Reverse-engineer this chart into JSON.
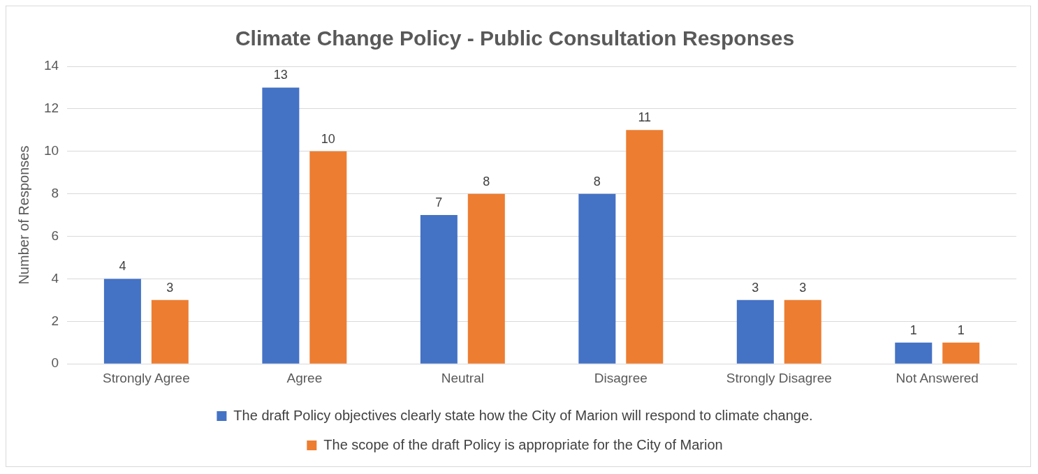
{
  "chart_data": {
    "type": "bar",
    "title": "Climate Change Policy - Public Consultation Responses",
    "ylabel": "Number of Responses",
    "categories": [
      "Strongly Agree",
      "Agree",
      "Neutral",
      "Disagree",
      "Strongly Disagree",
      "Not Answered"
    ],
    "series": [
      {
        "name": "The draft Policy objectives clearly state how the City of Marion will respond to climate change.",
        "color": "#4472c4",
        "values": [
          4,
          13,
          7,
          8,
          3,
          1
        ]
      },
      {
        "name": "The scope of the draft Policy is appropriate for the City of Marion",
        "color": "#ed7d31",
        "values": [
          3,
          10,
          8,
          11,
          3,
          1
        ]
      }
    ],
    "ylim": [
      0,
      14
    ],
    "yticks": [
      0,
      2,
      4,
      6,
      8,
      10,
      12,
      14
    ],
    "grid": "y",
    "legend": "bottom",
    "data_labels": true
  }
}
